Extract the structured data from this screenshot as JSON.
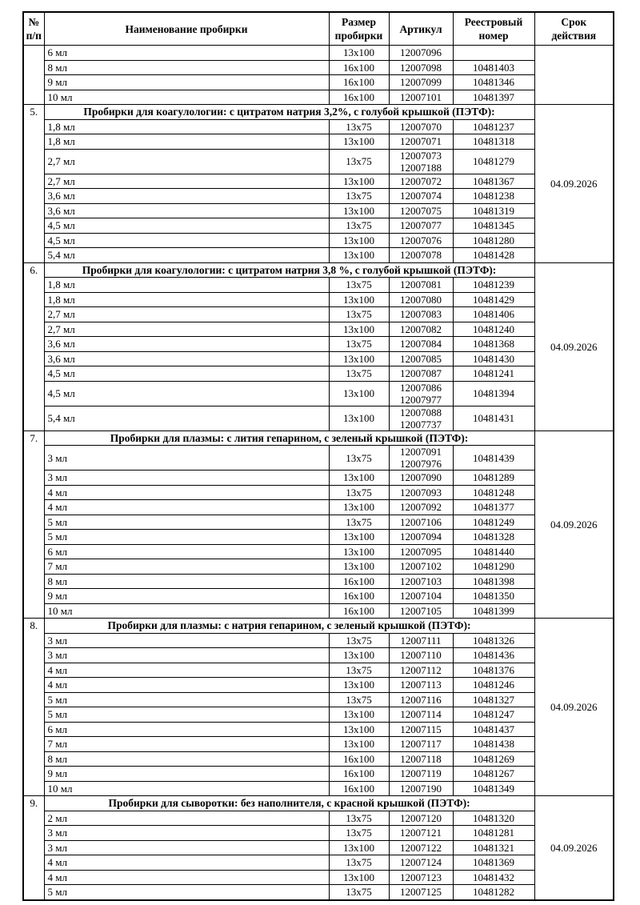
{
  "colors": {
    "background": "#ffffff",
    "text": "#000000",
    "border": "#000000"
  },
  "table": {
    "columns": {
      "num": "№\nп/п",
      "name": "Наименование пробирки",
      "size": "Размер\nпробирки",
      "article": "Артикул",
      "registry": "Реестровый\nномер",
      "validity": "Срок\nдействия"
    },
    "sections": [
      {
        "num": "",
        "title": null,
        "validity": "",
        "rows": [
          {
            "name": "6 мл",
            "size": "13x100",
            "article": "12007096",
            "registry": ""
          },
          {
            "name": "8 мл",
            "size": "16x100",
            "article": "12007098",
            "registry": "10481403"
          },
          {
            "name": "9 мл",
            "size": "16x100",
            "article": "12007099",
            "registry": "10481346"
          },
          {
            "name": "10 мл",
            "size": "16x100",
            "article": "12007101",
            "registry": "10481397"
          }
        ]
      },
      {
        "num": "5.",
        "title": "Пробирки для коагулологии: с цитратом натрия 3,2%, с голубой крышкой (ПЭТФ):",
        "validity": "04.09.2026",
        "rows": [
          {
            "name": "1,8 мл",
            "size": "13x75",
            "article": "12007070",
            "registry": "10481237"
          },
          {
            "name": "1,8 мл",
            "size": "13x100",
            "article": "12007071",
            "registry": "10481318"
          },
          {
            "name": "2,7 мл",
            "size": "13x75",
            "article": "12007073\n12007188",
            "registry": "10481279"
          },
          {
            "name": "2,7 мл",
            "size": "13x100",
            "article": "12007072",
            "registry": "10481367"
          },
          {
            "name": "3,6 мл",
            "size": "13x75",
            "article": "12007074",
            "registry": "10481238"
          },
          {
            "name": "3,6 мл",
            "size": "13x100",
            "article": "12007075",
            "registry": "10481319"
          },
          {
            "name": "4,5 мл",
            "size": "13x75",
            "article": "12007077",
            "registry": "10481345"
          },
          {
            "name": "4,5 мл",
            "size": "13x100",
            "article": "12007076",
            "registry": "10481280"
          },
          {
            "name": "5,4 мл",
            "size": "13x100",
            "article": "12007078",
            "registry": "10481428"
          }
        ]
      },
      {
        "num": "6.",
        "title": "Пробирки для коагулологии: с цитратом натрия 3,8 %, с голубой крышкой (ПЭТФ):",
        "validity": "04.09.2026",
        "rows": [
          {
            "name": "1,8 мл",
            "size": "13x75",
            "article": "12007081",
            "registry": "10481239"
          },
          {
            "name": "1,8 мл",
            "size": "13x100",
            "article": "12007080",
            "registry": "10481429"
          },
          {
            "name": "2,7 мл",
            "size": "13x75",
            "article": "12007083",
            "registry": "10481406"
          },
          {
            "name": "2,7 мл",
            "size": "13x100",
            "article": "12007082",
            "registry": "10481240"
          },
          {
            "name": "3,6 мл",
            "size": "13x75",
            "article": "12007084",
            "registry": "10481368"
          },
          {
            "name": "3,6 мл",
            "size": "13x100",
            "article": "12007085",
            "registry": "10481430"
          },
          {
            "name": "4,5 мл",
            "size": "13x75",
            "article": "12007087",
            "registry": "10481241"
          },
          {
            "name": "4,5 мл",
            "size": "13x100",
            "article": "12007086\n12007977",
            "registry": "10481394"
          },
          {
            "name": "5,4 мл",
            "size": "13x100",
            "article": "12007088\n12007737",
            "registry": "10481431"
          }
        ]
      },
      {
        "num": "7.",
        "title": "Пробирки для плазмы: с лития гепарином, с зеленый крышкой (ПЭТФ):",
        "validity": "04.09.2026",
        "rows": [
          {
            "name": "3 мл",
            "size": "13x75",
            "article": "12007091\n12007976",
            "registry": "10481439"
          },
          {
            "name": "3 мл",
            "size": "13x100",
            "article": "12007090",
            "registry": "10481289"
          },
          {
            "name": "4 мл",
            "size": "13x75",
            "article": "12007093",
            "registry": "10481248"
          },
          {
            "name": "4 мл",
            "size": "13x100",
            "article": "12007092",
            "registry": "10481377"
          },
          {
            "name": "5 мл",
            "size": "13x75",
            "article": "12007106",
            "registry": "10481249"
          },
          {
            "name": "5 мл",
            "size": "13x100",
            "article": "12007094",
            "registry": "10481328"
          },
          {
            "name": "6 мл",
            "size": "13x100",
            "article": "12007095",
            "registry": "10481440"
          },
          {
            "name": "7 мл",
            "size": "13x100",
            "article": "12007102",
            "registry": "10481290"
          },
          {
            "name": "8 мл",
            "size": "16x100",
            "article": "12007103",
            "registry": "10481398"
          },
          {
            "name": "9 мл",
            "size": "16x100",
            "article": "12007104",
            "registry": "10481350"
          },
          {
            "name": "10 мл",
            "size": "16x100",
            "article": "12007105",
            "registry": "10481399"
          }
        ]
      },
      {
        "num": "8.",
        "title": "Пробирки для плазмы: с натрия гепарином, с зеленый крышкой (ПЭТФ):",
        "validity": "04.09.2026",
        "rows": [
          {
            "name": "3 мл",
            "size": "13x75",
            "article": "12007111",
            "registry": "10481326"
          },
          {
            "name": "3 мл",
            "size": "13x100",
            "article": "12007110",
            "registry": "10481436"
          },
          {
            "name": "4 мл",
            "size": "13x75",
            "article": "12007112",
            "registry": "10481376"
          },
          {
            "name": "4 мл",
            "size": "13x100",
            "article": "12007113",
            "registry": "10481246"
          },
          {
            "name": "5 мл",
            "size": "13x75",
            "article": "12007116",
            "registry": "10481327"
          },
          {
            "name": "5 мл",
            "size": "13x100",
            "article": "12007114",
            "registry": "10481247"
          },
          {
            "name": "6 мл",
            "size": "13x100",
            "article": "12007115",
            "registry": "10481437"
          },
          {
            "name": "7 мл",
            "size": "13x100",
            "article": "12007117",
            "registry": "10481438"
          },
          {
            "name": "8 мл",
            "size": "16x100",
            "article": "12007118",
            "registry": "10481269"
          },
          {
            "name": "9 мл",
            "size": "16x100",
            "article": "12007119",
            "registry": "10481267"
          },
          {
            "name": "10 мл",
            "size": "16x100",
            "article": "12007190",
            "registry": "10481349"
          }
        ]
      },
      {
        "num": "9.",
        "title": "Пробирки для сыворотки: без наполнителя, с красной крышкой (ПЭТФ):",
        "validity": "04.09.2026",
        "rows": [
          {
            "name": "2 мл",
            "size": "13x75",
            "article": "12007120",
            "registry": "10481320"
          },
          {
            "name": "3 мл",
            "size": "13x75",
            "article": "12007121",
            "registry": "10481281"
          },
          {
            "name": "3 мл",
            "size": "13x100",
            "article": "12007122",
            "registry": "10481321"
          },
          {
            "name": "4 мл",
            "size": "13x75",
            "article": "12007124",
            "registry": "10481369"
          },
          {
            "name": "4 мл",
            "size": "13x100",
            "article": "12007123",
            "registry": "10481432"
          },
          {
            "name": "5 мл",
            "size": "13x75",
            "article": "12007125",
            "registry": "10481282"
          }
        ]
      }
    ]
  }
}
